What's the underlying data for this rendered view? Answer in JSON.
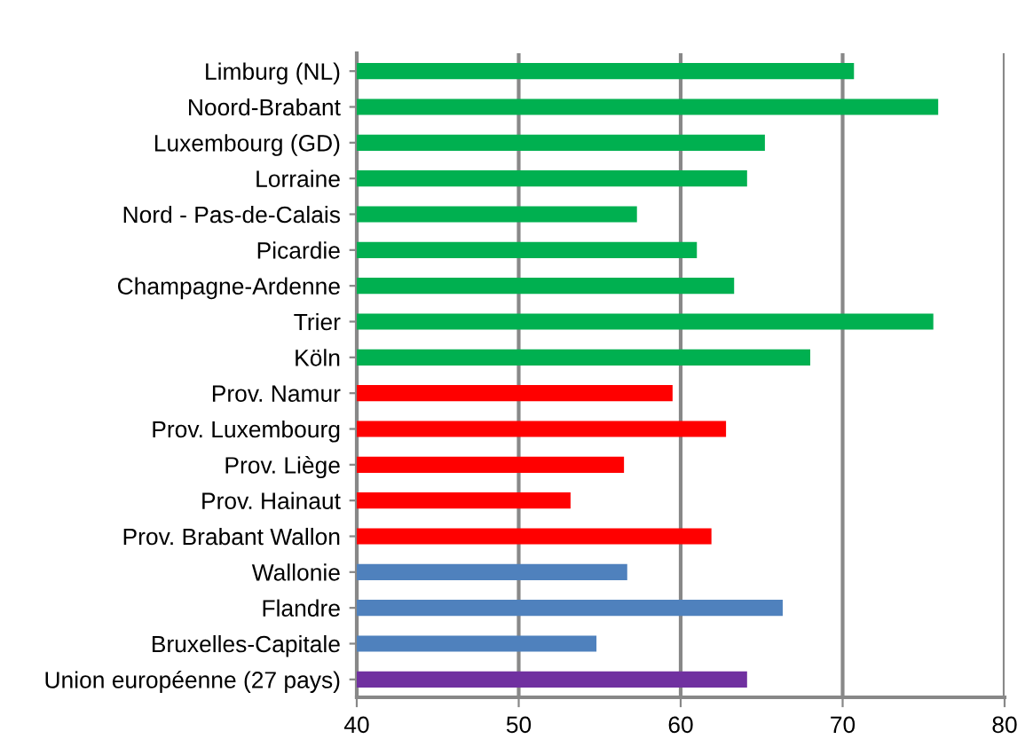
{
  "chart_data": {
    "type": "bar",
    "orientation": "horizontal",
    "categories": [
      "Limburg (NL)",
      "Noord-Brabant",
      "Luxembourg (GD)",
      "Lorraine",
      "Nord - Pas-de-Calais",
      "Picardie",
      "Champagne-Ardenne",
      "Trier",
      "Köln",
      "Prov. Namur",
      "Prov. Luxembourg",
      "Prov. Liège",
      "Prov. Hainaut",
      "Prov. Brabant Wallon",
      "Wallonie",
      "Flandre",
      "Bruxelles-Capitale",
      "Union européenne (27 pays)"
    ],
    "values": [
      70.7,
      75.9,
      65.2,
      64.1,
      57.3,
      61.0,
      63.3,
      75.6,
      68.0,
      59.5,
      62.8,
      56.5,
      53.2,
      61.9,
      56.7,
      66.3,
      54.8,
      64.1
    ],
    "colors": [
      "#00b050",
      "#00b050",
      "#00b050",
      "#00b050",
      "#00b050",
      "#00b050",
      "#00b050",
      "#00b050",
      "#00b050",
      "#ff0000",
      "#ff0000",
      "#ff0000",
      "#ff0000",
      "#ff0000",
      "#4f81bd",
      "#4f81bd",
      "#4f81bd",
      "#7030a0"
    ],
    "xlim": [
      40,
      80
    ],
    "xticks": [
      40,
      50,
      60,
      70,
      80
    ],
    "grid": "x",
    "legend": false
  }
}
